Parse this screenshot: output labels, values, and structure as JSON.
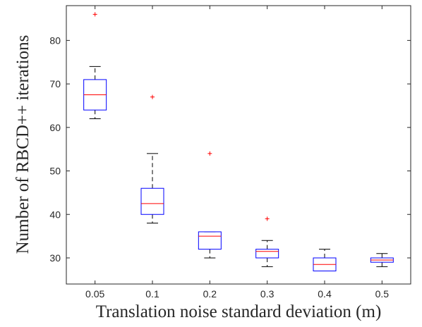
{
  "chart_data": {
    "type": "box",
    "title": "",
    "xlabel": "Translation noise standard deviation (m)",
    "ylabel": "Number of RBCD++ iterations",
    "categories": [
      "0.05",
      "0.1",
      "0.2",
      "0.3",
      "0.4",
      "0.5"
    ],
    "ylim": [
      24,
      88
    ],
    "yticks": [
      30,
      40,
      50,
      60,
      70,
      80
    ],
    "grid": false,
    "legend": "none",
    "colors": {
      "box": "#0000ff",
      "median": "#ff0000",
      "whisker": "#000000",
      "outlier": "#ff0000",
      "axis": "#262626"
    },
    "boxes": [
      {
        "category": "0.05",
        "min": 62,
        "q1": 64,
        "median": 67.5,
        "q3": 71,
        "max": 74,
        "outliers": [
          86
        ]
      },
      {
        "category": "0.1",
        "min": 38,
        "q1": 40,
        "median": 42.5,
        "q3": 46,
        "max": 54,
        "outliers": [
          67
        ]
      },
      {
        "category": "0.2",
        "min": 30,
        "q1": 32,
        "median": 35,
        "q3": 36,
        "max": 36,
        "outliers": [
          54
        ]
      },
      {
        "category": "0.3",
        "min": 28,
        "q1": 30,
        "median": 31.5,
        "q3": 32,
        "max": 34,
        "outliers": [
          39
        ]
      },
      {
        "category": "0.4",
        "min": 27,
        "q1": 27,
        "median": 28.5,
        "q3": 30,
        "max": 32,
        "outliers": []
      },
      {
        "category": "0.5",
        "min": 28,
        "q1": 29,
        "median": 29.5,
        "q3": 30,
        "max": 31,
        "outliers": []
      }
    ]
  }
}
